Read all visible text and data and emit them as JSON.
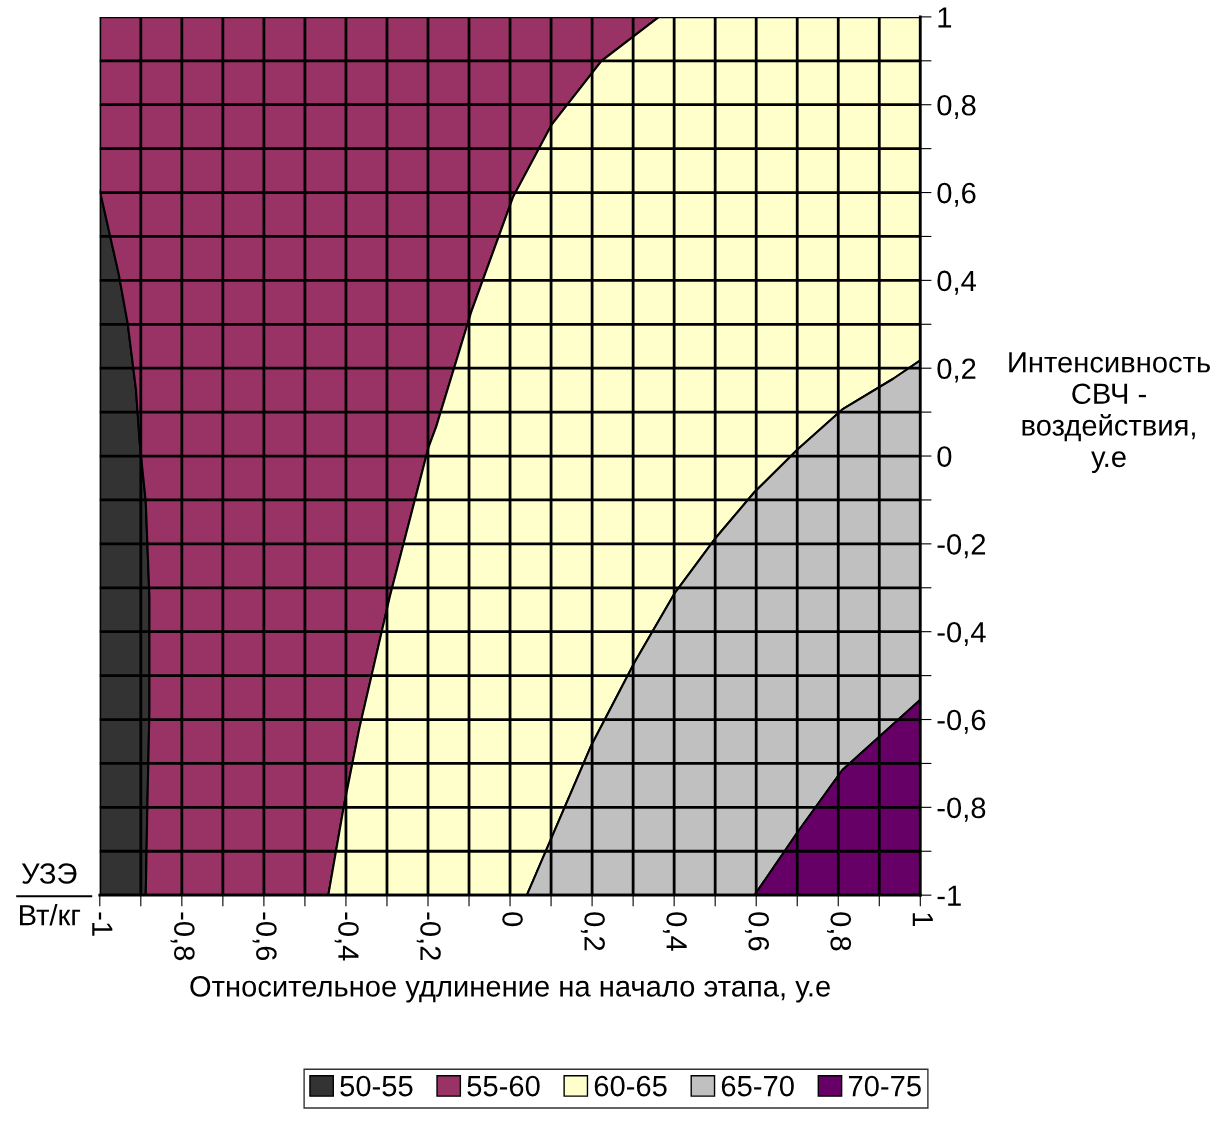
{
  "chart_data": {
    "type": "area",
    "xlabel": "Относительное удлинение на начало этапа, у.е",
    "ylabel": "Интенсивность\nСВЧ -\nвоздействия,\nу.е",
    "xlim": [
      -1,
      1
    ],
    "ylim": [
      -1,
      1
    ],
    "xticks": [
      {
        "value": -1,
        "label": "-1"
      },
      {
        "value": -0.9,
        "label": null
      },
      {
        "value": -0.8,
        "label": "-0,8"
      },
      {
        "value": -0.7,
        "label": null
      },
      {
        "value": -0.6,
        "label": "-0,6"
      },
      {
        "value": -0.5,
        "label": null
      },
      {
        "value": -0.4,
        "label": "-0,4"
      },
      {
        "value": -0.3,
        "label": null
      },
      {
        "value": -0.2,
        "label": "-0,2"
      },
      {
        "value": -0.1,
        "label": null
      },
      {
        "value": 0,
        "label": "0"
      },
      {
        "value": 0.1,
        "label": null
      },
      {
        "value": 0.2,
        "label": "0,2"
      },
      {
        "value": 0.3,
        "label": null
      },
      {
        "value": 0.4,
        "label": "0,4"
      },
      {
        "value": 0.5,
        "label": null
      },
      {
        "value": 0.6,
        "label": "0,6"
      },
      {
        "value": 0.7,
        "label": null
      },
      {
        "value": 0.8,
        "label": "0,8"
      },
      {
        "value": 0.9,
        "label": null
      },
      {
        "value": 1,
        "label": "1"
      }
    ],
    "yticks": [
      {
        "value": -1,
        "label": "-1"
      },
      {
        "value": -0.9,
        "label": null
      },
      {
        "value": -0.8,
        "label": "-0,8"
      },
      {
        "value": -0.7,
        "label": null
      },
      {
        "value": -0.6,
        "label": "-0,6"
      },
      {
        "value": -0.5,
        "label": null
      },
      {
        "value": -0.4,
        "label": "-0,4"
      },
      {
        "value": -0.3,
        "label": null
      },
      {
        "value": -0.2,
        "label": "-0,2"
      },
      {
        "value": -0.1,
        "label": null
      },
      {
        "value": 0,
        "label": "0"
      },
      {
        "value": 0.1,
        "label": null
      },
      {
        "value": 0.2,
        "label": "0,2"
      },
      {
        "value": 0.3,
        "label": null
      },
      {
        "value": 0.4,
        "label": "0,4"
      },
      {
        "value": 0.5,
        "label": null
      },
      {
        "value": 0.6,
        "label": "0,6"
      },
      {
        "value": 0.7,
        "label": null
      },
      {
        "value": 0.8,
        "label": "0,8"
      },
      {
        "value": 0.9,
        "label": null
      },
      {
        "value": 1,
        "label": "1"
      }
    ],
    "grid": true,
    "legend": "bottom",
    "annotations": [
      "УЗЭ",
      "Вт/кг"
    ],
    "series": [
      {
        "name": "50-55",
        "color": "#333333",
        "x": [
          -1,
          -0.954,
          -0.932,
          -0.912,
          -0.902,
          -0.888,
          -0.879,
          -0.879,
          -0.884,
          -0.888,
          -1
        ],
        "values": [
          0.605,
          0.415,
          0.302,
          0.153,
          0.024,
          -0.103,
          -0.32,
          -0.58,
          -0.797,
          -1,
          -1
        ]
      },
      {
        "name": "55-60",
        "color": "#993366",
        "x": [
          -1,
          0.363,
          0.223,
          0.101,
          0.007,
          -0.095,
          -0.18,
          -0.199,
          -0.293,
          -0.368,
          -0.405,
          -0.443,
          -0.888,
          -0.884,
          -0.879,
          -0.879,
          -0.888,
          -0.902,
          -0.912,
          -0.932,
          -0.954,
          -1
        ],
        "values": [
          1,
          1,
          0.9,
          0.754,
          0.589,
          0.327,
          0.067,
          0.019,
          -0.32,
          -0.623,
          -0.797,
          -1,
          -1,
          -0.797,
          -0.58,
          -0.32,
          -0.103,
          0.024,
          0.153,
          0.302,
          0.415,
          0.605
        ]
      },
      {
        "name": "60-65",
        "color": "#ffffcc",
        "x": [
          0.363,
          1,
          1,
          0.934,
          0.81,
          0.702,
          0.596,
          0.499,
          0.401,
          0.304,
          0.198,
          0.041,
          -0.443,
          -0.405,
          -0.368,
          -0.293,
          -0.199,
          -0.18,
          -0.095,
          0.007,
          0.101,
          0.223
        ],
        "values": [
          1,
          1,
          0.218,
          0.176,
          0.106,
          0.016,
          -0.082,
          -0.189,
          -0.313,
          -0.469,
          -0.659,
          -1,
          -1,
          -0.797,
          -0.623,
          -0.32,
          0.019,
          0.067,
          0.327,
          0.589,
          0.754,
          0.9
        ]
      },
      {
        "name": "65-70",
        "color": "#c0c0c0",
        "x": [
          0.041,
          0.198,
          0.304,
          0.401,
          0.499,
          0.596,
          0.702,
          0.81,
          0.934,
          1,
          1,
          0.898,
          0.81,
          0.702,
          0.596
        ],
        "values": [
          -1,
          -0.659,
          -0.469,
          -0.313,
          -0.189,
          -0.082,
          0.016,
          0.106,
          0.176,
          0.218,
          -0.555,
          -0.641,
          -0.715,
          -0.855,
          -1
        ]
      },
      {
        "name": "70-75",
        "color": "#660066",
        "x": [
          0.596,
          0.702,
          0.81,
          0.898,
          1,
          1
        ],
        "values": [
          -1,
          -0.855,
          -0.715,
          -0.641,
          -0.555,
          -1
        ]
      }
    ]
  }
}
